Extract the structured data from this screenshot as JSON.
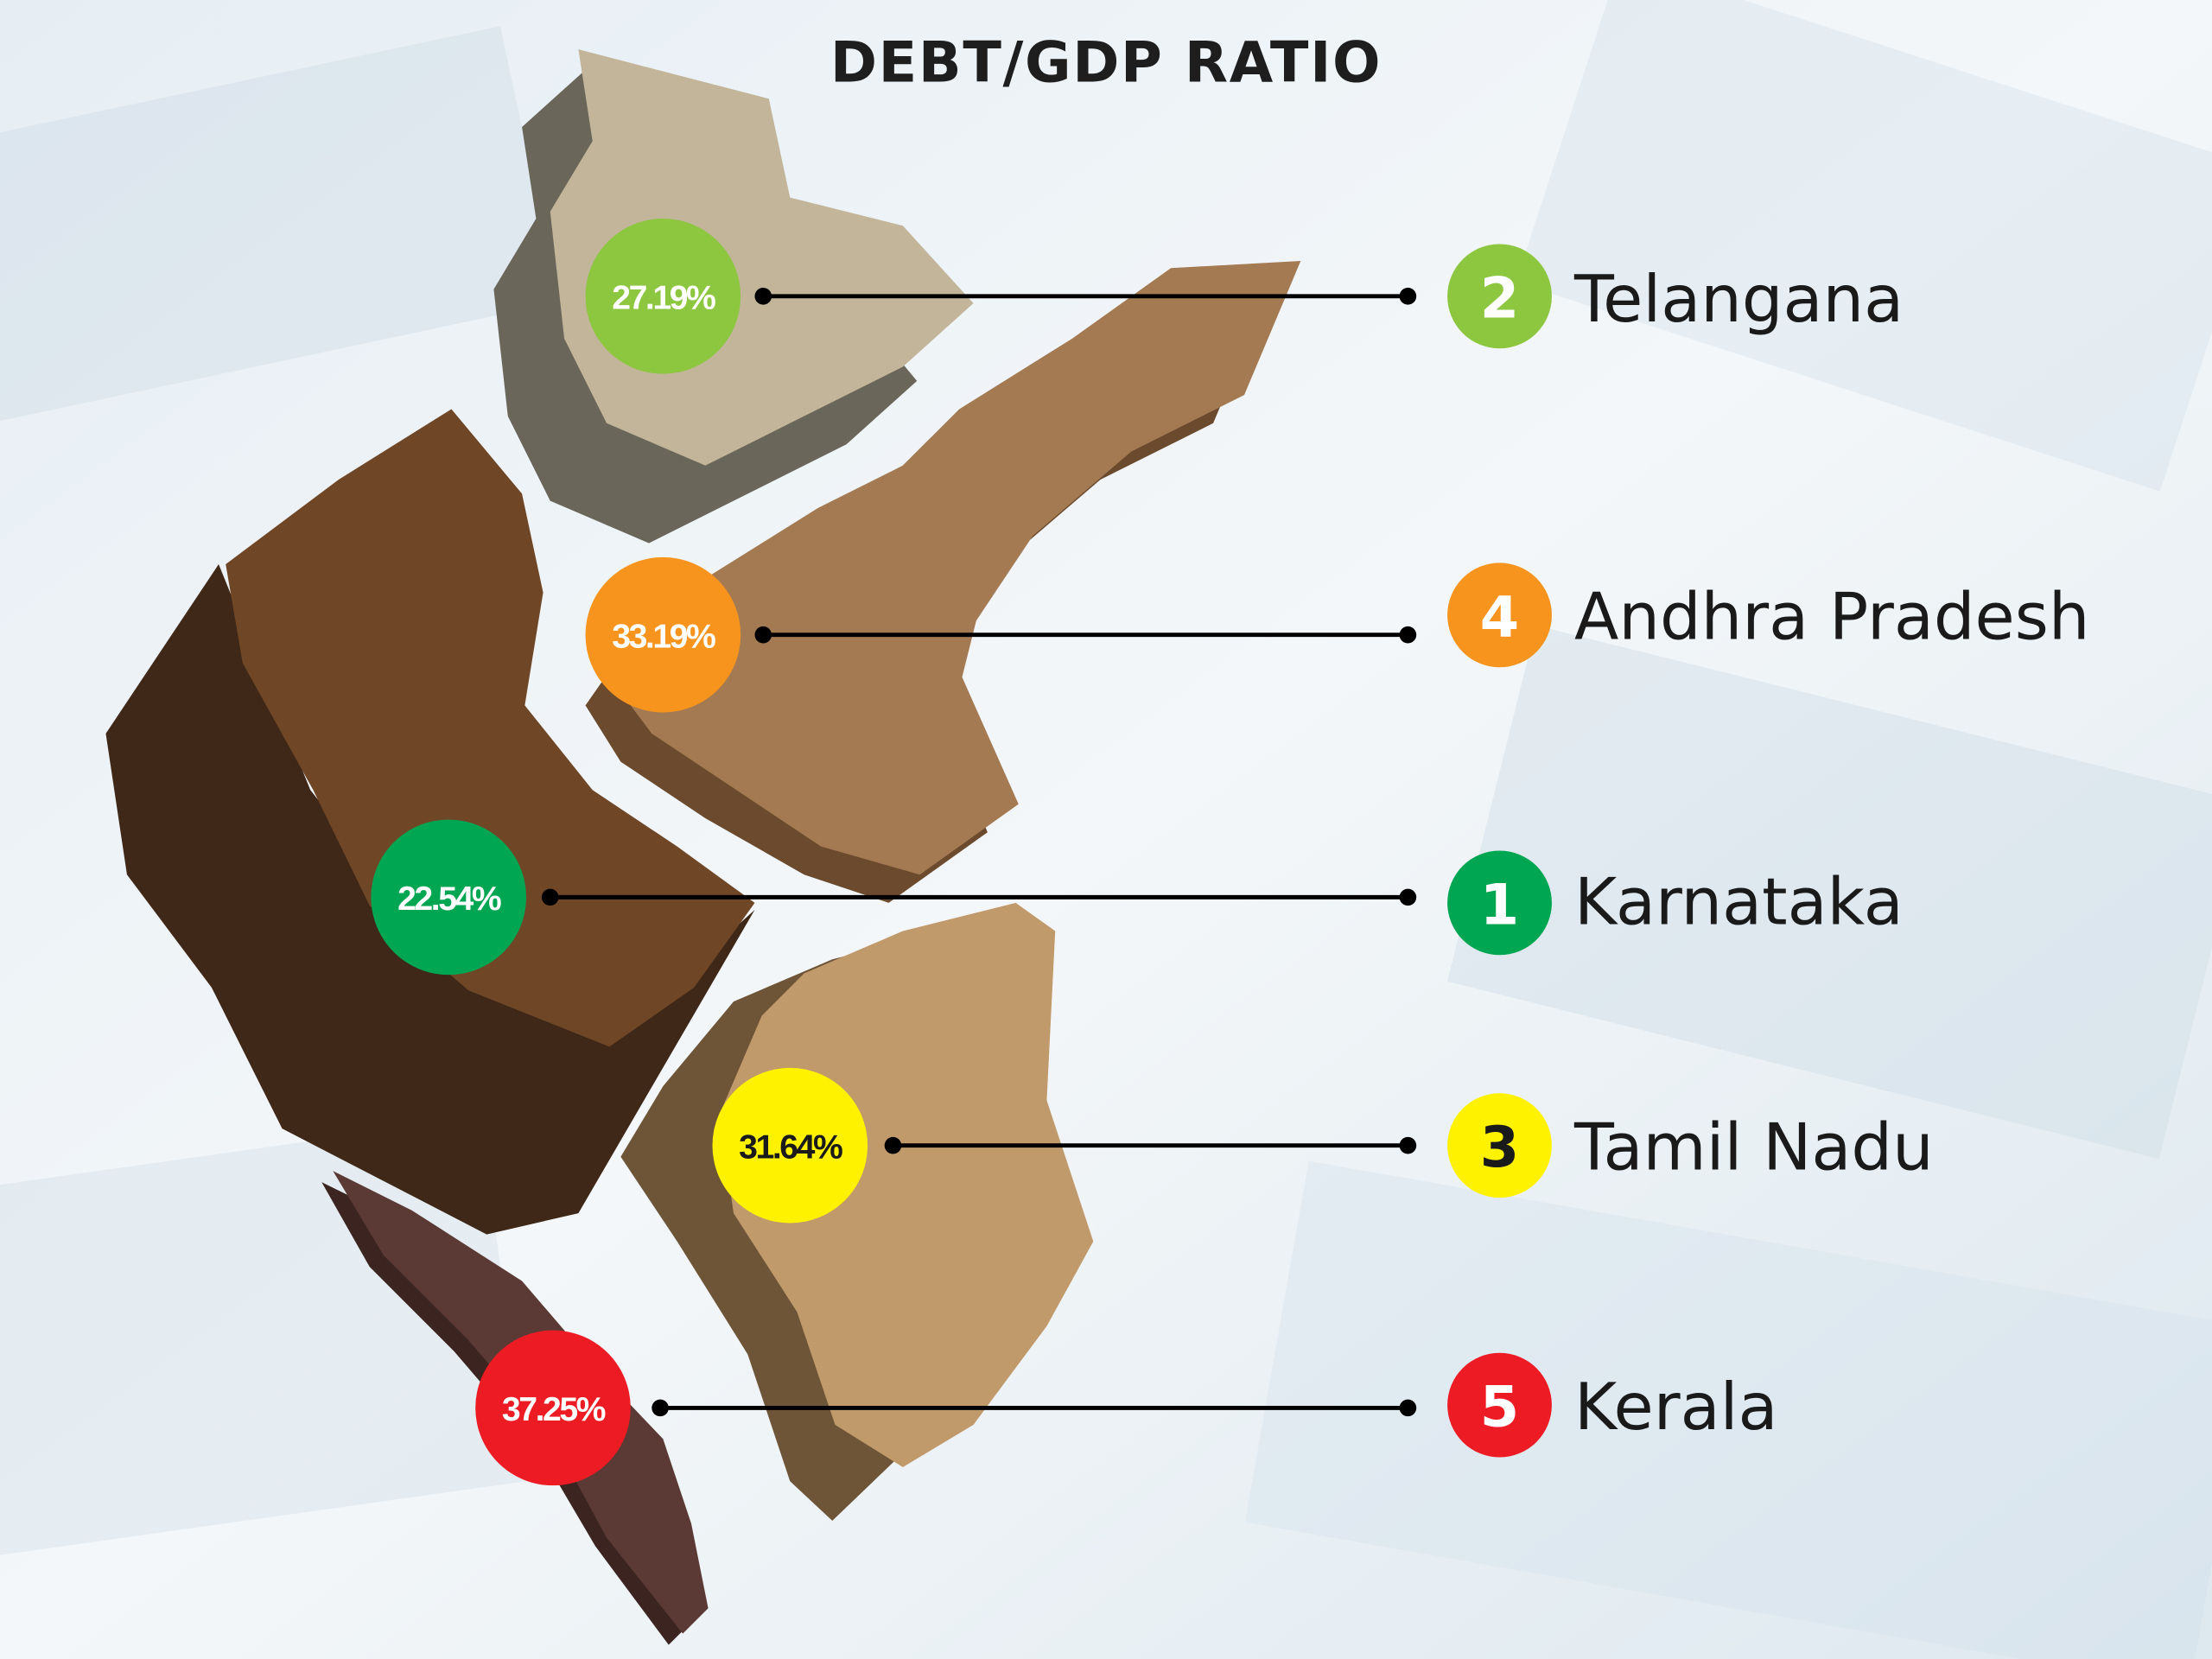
{
  "title": "DEBT/GDP RATIO",
  "states": [
    {
      "name": "Telangana",
      "rank": "2",
      "ratio": "27.19%",
      "color": "#8dc63f",
      "text_color": "#ffffff",
      "map_color": "#c2b59a"
    },
    {
      "name": "Andhra Pradesh",
      "rank": "4",
      "ratio": "33.19%",
      "color": "#f7941d",
      "text_color": "#ffffff",
      "map_color": "#a47a52"
    },
    {
      "name": "Karnataka",
      "rank": "1",
      "ratio": "22.54%",
      "color": "#00a651",
      "text_color": "#ffffff",
      "map_color": "#6f4727"
    },
    {
      "name": "Tamil Nadu",
      "rank": "3",
      "ratio": "31.64%",
      "color": "#fff200",
      "text_color": "#1a1a1a",
      "map_color": "#c19a6b"
    },
    {
      "name": "Kerala",
      "rank": "5",
      "ratio": "37.25%",
      "color": "#ed1c24",
      "text_color": "#ffffff",
      "map_color": "#5b3a35"
    }
  ]
}
